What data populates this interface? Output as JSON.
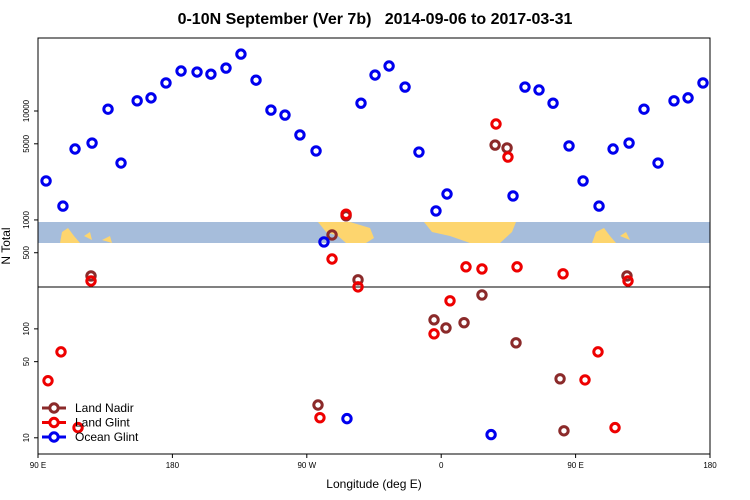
{
  "chart_data": {
    "type": "scatter",
    "title": "0-10N September (Ver 7b)   2014-09-06 to 2017-03-31",
    "xlabel": "Longitude (deg E)",
    "ylabel": "N Total",
    "xlim": [
      90,
      540
    ],
    "xticks": [
      {
        "value": 90,
        "label": "90 E"
      },
      180,
      {
        "value": 270,
        "label": "90 W"
      },
      {
        "value": 360,
        "label": "0"
      },
      {
        "value": 450,
        "label": "90 E"
      },
      {
        "value": 540,
        "label": "180"
      }
    ],
    "ylim": [
      7.1,
      46800
    ],
    "ylog": true,
    "yticks": [
      10,
      50,
      100,
      500,
      1000,
      5000,
      10000
    ],
    "legend": "bottom-left",
    "series": [
      {
        "name": "Land Nadir",
        "color": "#8b2a2a",
        "x": [
          125.5,
          277.5,
          286.9,
          296.3,
          304.3,
          355.2,
          363.2,
          375.3,
          387.3,
          396.1,
          404.1,
          410.1,
          439.6,
          442.2,
          484.4
        ],
        "values": [
          306,
          20,
          728,
          1090,
          282,
          121,
          102,
          114,
          205,
          4870,
          4580,
          74.5,
          34.8,
          11.6,
          306
        ]
      },
      {
        "name": "Land Glint",
        "color": "#ee0000",
        "x": [
          96.7,
          105.4,
          116.8,
          125.5,
          278.8,
          286.9,
          296.3,
          304.3,
          355.2,
          365.9,
          376.6,
          387.3,
          396.7,
          404.7,
          410.8,
          441.6,
          456.3,
          465,
          476.4,
          485.1
        ],
        "values": [
          33.4,
          61.5,
          12.4,
          275,
          15.3,
          438,
          1130,
          243,
          90,
          181,
          371,
          355,
          7600,
          3780,
          371,
          320,
          34,
          61.5,
          12.4,
          275
        ]
      },
      {
        "name": "Ocean Glint",
        "color": "#0000ee",
        "x": [
          95.4,
          106.7,
          114.8,
          126.2,
          136.9,
          145.6,
          156.4,
          165.7,
          175.7,
          185.8,
          196.5,
          205.8,
          215.9,
          225.9,
          236,
          246,
          255.4,
          265.4,
          276.2,
          281.5,
          296.9,
          306.3,
          315.7,
          325.1,
          335.8,
          345.1,
          356.5,
          363.9,
          393.4,
          408.1,
          416.1,
          425.5,
          434.9,
          445.6,
          455,
          465.7,
          475.1,
          485.8,
          495.8,
          505.2,
          515.9,
          525.3,
          535.3
        ],
        "values": [
          2280,
          1340,
          4480,
          5080,
          10400,
          3330,
          12400,
          13200,
          18100,
          23300,
          22800,
          21800,
          24800,
          33300,
          19200,
          10200,
          9180,
          6030,
          4300,
          628,
          15,
          11800,
          21400,
          25900,
          16600,
          4200,
          1210,
          1730,
          10.7,
          1660,
          16600,
          15600,
          11800,
          4780,
          2280,
          1340,
          4480,
          5080,
          10400,
          3330,
          12400,
          13200,
          18100
        ]
      }
    ]
  }
}
